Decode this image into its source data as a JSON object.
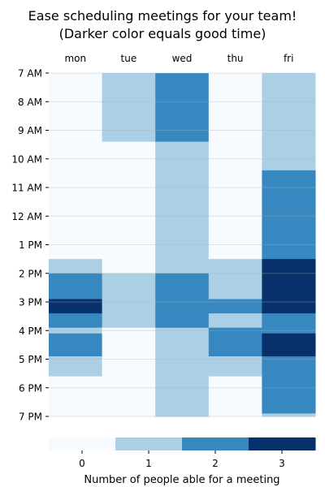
{
  "chart_data": {
    "type": "heatmap",
    "title": "Ease scheduling meetings for your team!",
    "subtitle": "(Darker color equals good time)",
    "days": [
      "mon",
      "tue",
      "wed",
      "thu",
      "fri"
    ],
    "time_labels": [
      "7 AM",
      "8 AM",
      "9 AM",
      "10 AM",
      "11 AM",
      "12 AM",
      "1 PM",
      "2 PM",
      "3 PM",
      "4 PM",
      "5 PM",
      "6 PM",
      "7 PM"
    ],
    "time_range": [
      7,
      19
    ],
    "segments": {
      "mon": [
        [
          7,
          13.5,
          0
        ],
        [
          13.5,
          14,
          1
        ],
        [
          14,
          14.9,
          2
        ],
        [
          14.9,
          15.4,
          3
        ],
        [
          15.4,
          15.9,
          2
        ],
        [
          15.9,
          16.1,
          1
        ],
        [
          16.1,
          16.9,
          2
        ],
        [
          16.9,
          17.6,
          1
        ],
        [
          17.6,
          19,
          0
        ]
      ],
      "tue": [
        [
          7,
          7.9,
          1
        ],
        [
          7.9,
          9.4,
          1
        ],
        [
          9.4,
          14,
          0
        ],
        [
          14,
          15.9,
          1
        ],
        [
          15.9,
          19,
          0
        ]
      ],
      "wed": [
        [
          7,
          9.4,
          2
        ],
        [
          9.4,
          14,
          1
        ],
        [
          14,
          15.9,
          2
        ],
        [
          15.9,
          19,
          1
        ]
      ],
      "thu": [
        [
          7,
          13.5,
          0
        ],
        [
          13.5,
          14.9,
          1
        ],
        [
          14.9,
          15.4,
          2
        ],
        [
          15.4,
          15.9,
          1
        ],
        [
          15.9,
          16.9,
          2
        ],
        [
          16.9,
          17.6,
          1
        ],
        [
          17.6,
          19,
          0
        ]
      ],
      "fri": [
        [
          7,
          10.4,
          1
        ],
        [
          10.4,
          13.5,
          2
        ],
        [
          13.5,
          15.4,
          3
        ],
        [
          15.4,
          16.1,
          2
        ],
        [
          16.1,
          16.9,
          3
        ],
        [
          16.9,
          18.9,
          2
        ],
        [
          18.9,
          19,
          1
        ]
      ]
    },
    "colorbar": {
      "label": "Number of people able for a meeting",
      "levels": [
        0,
        1,
        2,
        3
      ],
      "tick_labels": [
        "0",
        "1",
        "2",
        "3"
      ],
      "colors": [
        "#f7fbff",
        "#abd0e6",
        "#3787c0",
        "#08306b"
      ]
    },
    "grid": true
  }
}
